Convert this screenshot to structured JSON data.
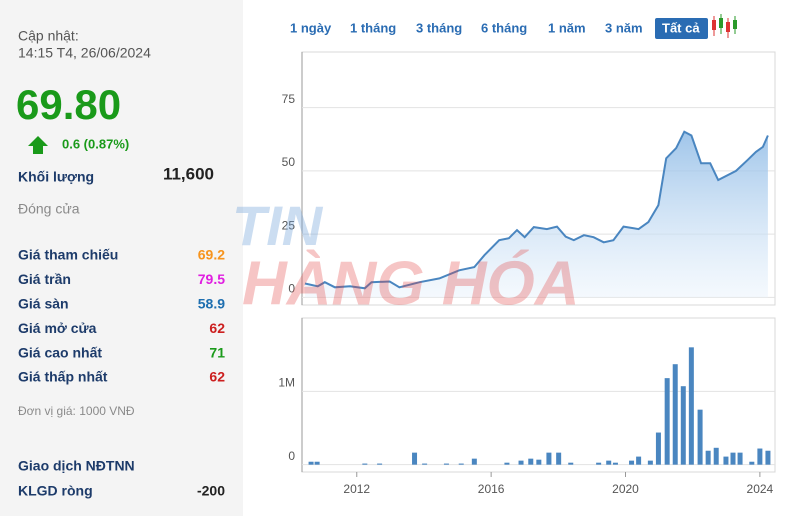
{
  "info": {
    "updated_label": "Cập nhật:",
    "updated_time": "14:15 T4, 26/06/2024",
    "price": "69.80",
    "change": "0.6 (0.87%)",
    "volume_label": "Khối lượng",
    "volume": "11,600",
    "close_label": "Đóng cửa",
    "rows": [
      {
        "label": "Giá tham chiếu",
        "value": "69.2",
        "color": "#f7941d"
      },
      {
        "label": "Giá trần",
        "value": "79.5",
        "color": "#e01ee0"
      },
      {
        "label": "Giá sàn",
        "value": "58.9",
        "color": "#1e6fb0"
      },
      {
        "label": "Giá mở cửa",
        "value": "62",
        "color": "#cc1f1f"
      },
      {
        "label": "Giá cao nhất",
        "value": "71",
        "color": "#1a9a1a"
      },
      {
        "label": "Giá thấp nhất",
        "value": "62",
        "color": "#cc1f1f"
      }
    ],
    "unit": "Đơn vị giá: 1000 VNĐ",
    "foreign_title": "Giao dịch NĐTNN",
    "net_label": "KLGD ròng",
    "net_value": "-200"
  },
  "tabs": [
    "1 ngày",
    "1 tháng",
    "3 tháng",
    "6 tháng",
    "1 năm",
    "3 năm",
    "Tất cả"
  ],
  "active_tab": 6,
  "watermark": [
    "TIN",
    "HÀNG HÓA"
  ],
  "chart_data": [
    {
      "type": "area",
      "color": "#4a86c0",
      "x": [
        2010.46,
        2010.84,
        2011.05,
        2011.35,
        2011.8,
        2012.24,
        2012.44,
        2012.98,
        2013.27,
        2013.87,
        2014.46,
        2015.05,
        2015.5,
        2015.8,
        2016.24,
        2016.53,
        2016.77,
        2017.0,
        2017.27,
        2017.66,
        2017.96,
        2018.22,
        2018.46,
        2018.76,
        2019.05,
        2019.35,
        2019.64,
        2019.94,
        2020.39,
        2020.68,
        2020.98,
        2021.21,
        2021.51,
        2021.75,
        2021.96,
        2022.25,
        2022.52,
        2022.76,
        2023.29,
        2023.64,
        2023.88,
        2024.09,
        2024.24
      ],
      "values": [
        5.5,
        4.4,
        6,
        4,
        4.4,
        3.6,
        6,
        6.3,
        4,
        6,
        7.5,
        10.7,
        12,
        16.7,
        22.6,
        23.4,
        26.6,
        23.8,
        27.8,
        27,
        28,
        24,
        22.6,
        24.6,
        23.8,
        21.8,
        22.6,
        28,
        27,
        29.8,
        36.5,
        55,
        59,
        65.5,
        64,
        53,
        53,
        46.4,
        50,
        54.4,
        57.5,
        59.5,
        64
      ],
      "xlim": [
        2010.37,
        2024.45
      ],
      "ylim": [
        -3,
        97
      ],
      "yticks": [
        0,
        25,
        50,
        75
      ],
      "grid": true
    },
    {
      "type": "bar",
      "color": "#4a86c0",
      "x": [
        2010.64,
        2010.82,
        2012.24,
        2012.68,
        2013.72,
        2014.02,
        2014.67,
        2015.11,
        2015.5,
        2016.47,
        2016.89,
        2017.18,
        2017.42,
        2017.72,
        2018.01,
        2018.37,
        2019.2,
        2019.5,
        2019.7,
        2020.18,
        2020.39,
        2020.74,
        2020.98,
        2021.24,
        2021.48,
        2021.72,
        2021.96,
        2022.22,
        2022.46,
        2022.7,
        2022.99,
        2023.2,
        2023.41,
        2023.76,
        2024.0,
        2024.24
      ],
      "values": [
        40000,
        40000,
        15000,
        15000,
        164000,
        15000,
        15000,
        15000,
        82000,
        27000,
        55000,
        82000,
        68000,
        164000,
        164000,
        27000,
        27000,
        55000,
        27000,
        55000,
        110000,
        55000,
        438000,
        1180000,
        1370000,
        1070000,
        1600000,
        750000,
        190000,
        230000,
        110000,
        164000,
        164000,
        40000,
        220000,
        190000
      ],
      "xlim": [
        2010.37,
        2024.45
      ],
      "ylim": [
        -100000,
        2000000
      ],
      "yticks": [
        0,
        {
          "value": 1000000,
          "label": "1M"
        }
      ],
      "xticks": [
        2012,
        2016,
        2020,
        2024
      ],
      "grid": true
    }
  ]
}
